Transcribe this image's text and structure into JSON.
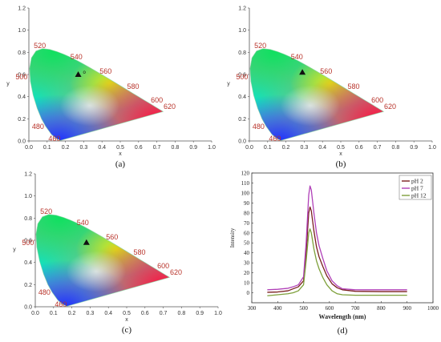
{
  "chart_data": [
    {
      "type": "cie-chromaticity",
      "panel_label": "(a)",
      "xlabel": "x",
      "ylabel": "y",
      "xlim": [
        0,
        1.0
      ],
      "ylim": [
        0,
        1.2
      ],
      "x_ticks": [
        "0.0",
        "0.1",
        "0.2",
        "0.3",
        "0.4",
        "0.5",
        "0.6",
        "0.7",
        "0.8",
        "0.9",
        "1.0"
      ],
      "y_ticks": [
        "0.0",
        "0.2",
        "0.4",
        "0.6",
        "0.8",
        "1.0",
        "1.2"
      ],
      "wavelength_labels": [
        {
          "text": "460",
          "x": 0.14,
          "y": 0.02
        },
        {
          "text": "480",
          "x": 0.05,
          "y": 0.13
        },
        {
          "text": "500",
          "x": -0.04,
          "y": 0.58
        },
        {
          "text": "520",
          "x": 0.06,
          "y": 0.86
        },
        {
          "text": "540",
          "x": 0.26,
          "y": 0.76
        },
        {
          "text": "560",
          "x": 0.42,
          "y": 0.63
        },
        {
          "text": "580",
          "x": 0.57,
          "y": 0.49
        },
        {
          "text": "600",
          "x": 0.7,
          "y": 0.37
        },
        {
          "text": "620",
          "x": 0.77,
          "y": 0.31
        }
      ],
      "points": [
        {
          "x": 0.27,
          "y": 0.6,
          "label": "o"
        }
      ]
    },
    {
      "type": "cie-chromaticity",
      "panel_label": "(b)",
      "xlabel": "x",
      "ylabel": "y",
      "xlim": [
        0,
        1.0
      ],
      "ylim": [
        0,
        1.2
      ],
      "x_ticks": [
        "0.0",
        "0.1",
        "0.2",
        "0.3",
        "0.4",
        "0.5",
        "0.6",
        "0.7",
        "0.8",
        "0.9",
        "1.0"
      ],
      "y_ticks": [
        "0.0",
        "0.2",
        "0.4",
        "0.6",
        "0.8",
        "1.0",
        "1.2"
      ],
      "wavelength_labels": [
        {
          "text": "460",
          "x": 0.14,
          "y": 0.02
        },
        {
          "text": "480",
          "x": 0.05,
          "y": 0.13
        },
        {
          "text": "500",
          "x": -0.04,
          "y": 0.58
        },
        {
          "text": "520",
          "x": 0.06,
          "y": 0.86
        },
        {
          "text": "540",
          "x": 0.26,
          "y": 0.76
        },
        {
          "text": "560",
          "x": 0.42,
          "y": 0.63
        },
        {
          "text": "580",
          "x": 0.57,
          "y": 0.49
        },
        {
          "text": "600",
          "x": 0.7,
          "y": 0.37
        },
        {
          "text": "620",
          "x": 0.77,
          "y": 0.31
        }
      ],
      "points": [
        {
          "x": 0.29,
          "y": 0.62,
          "label": ""
        }
      ]
    },
    {
      "type": "cie-chromaticity",
      "panel_label": "(c)",
      "xlabel": "x",
      "ylabel": "y",
      "xlim": [
        0,
        1.0
      ],
      "ylim": [
        0,
        1.2
      ],
      "x_ticks": [
        "0.0",
        "0.1",
        "0.2",
        "0.3",
        "0.4",
        "0.5",
        "0.6",
        "0.7",
        "0.8",
        "0.9",
        "1.0"
      ],
      "y_ticks": [
        "0.0",
        "0.2",
        "0.4",
        "0.6",
        "0.8",
        "1.0",
        "1.2"
      ],
      "wavelength_labels": [
        {
          "text": "460",
          "x": 0.14,
          "y": 0.02
        },
        {
          "text": "480",
          "x": 0.05,
          "y": 0.13
        },
        {
          "text": "500",
          "x": -0.04,
          "y": 0.58
        },
        {
          "text": "520",
          "x": 0.06,
          "y": 0.86
        },
        {
          "text": "540",
          "x": 0.26,
          "y": 0.76
        },
        {
          "text": "560",
          "x": 0.42,
          "y": 0.63
        },
        {
          "text": "580",
          "x": 0.57,
          "y": 0.49
        },
        {
          "text": "600",
          "x": 0.7,
          "y": 0.37
        },
        {
          "text": "620",
          "x": 0.77,
          "y": 0.31
        }
      ],
      "points": [
        {
          "x": 0.28,
          "y": 0.58,
          "label": ""
        }
      ]
    },
    {
      "type": "line",
      "panel_label": "(d)",
      "xlabel": "Wavelength (nm)",
      "ylabel": "Intensity",
      "xlim": [
        300,
        1000
      ],
      "ylim": [
        -10,
        120
      ],
      "x_ticks": [
        "300",
        "400",
        "500",
        "600",
        "700",
        "800",
        "900",
        "1000"
      ],
      "y_ticks": [
        "0",
        "10",
        "20",
        "30",
        "40",
        "50",
        "60",
        "70",
        "80",
        "90",
        "100",
        "110",
        "120"
      ],
      "legend_position": "top-right",
      "series": [
        {
          "name": "pH 2",
          "color": "#7a1f1f",
          "x": [
            360,
            400,
            440,
            460,
            480,
            500,
            510,
            520,
            525,
            530,
            540,
            550,
            560,
            575,
            590,
            610,
            630,
            650,
            700,
            800,
            900
          ],
          "y": [
            0.5,
            0.8,
            2,
            4,
            6,
            12,
            40,
            80,
            86,
            82,
            62,
            46,
            36,
            26,
            17,
            9,
            5,
            3,
            1.5,
            1.2,
            1.2
          ]
        },
        {
          "name": "pH 7",
          "color": "#b040b8",
          "x": [
            360,
            400,
            440,
            460,
            480,
            500,
            510,
            520,
            525,
            530,
            540,
            550,
            560,
            575,
            590,
            610,
            630,
            650,
            700,
            800,
            900
          ],
          "y": [
            3,
            3.5,
            4.5,
            6,
            8,
            16,
            50,
            98,
            107,
            103,
            80,
            60,
            47,
            34,
            22,
            12,
            7,
            4,
            3,
            3,
            3
          ]
        },
        {
          "name": "pH 12",
          "color": "#7ea03a",
          "x": [
            360,
            400,
            440,
            460,
            480,
            500,
            510,
            520,
            525,
            530,
            540,
            550,
            560,
            575,
            590,
            610,
            630,
            650,
            700,
            800,
            900
          ],
          "y": [
            -3,
            -2,
            -1,
            0,
            2,
            8,
            32,
            60,
            64,
            60,
            44,
            32,
            24,
            15,
            8,
            2,
            -1,
            -2,
            -2.5,
            -2.5,
            -2.5
          ]
        }
      ]
    }
  ]
}
